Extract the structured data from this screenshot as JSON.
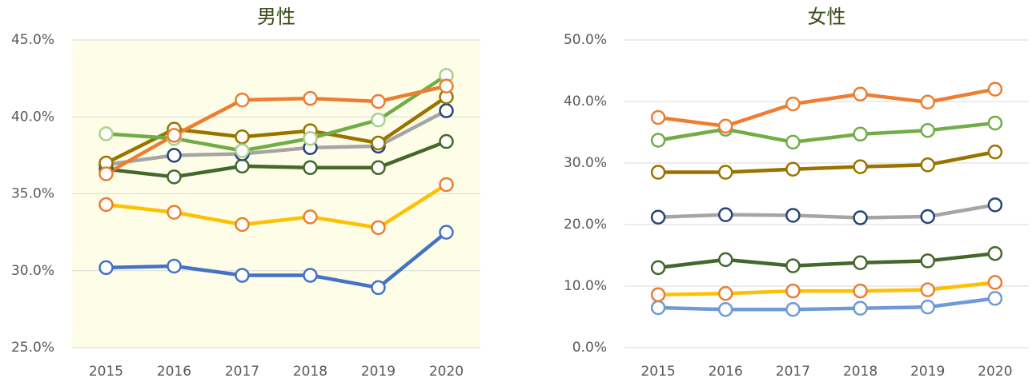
{
  "chart_data": [
    {
      "type": "line",
      "title": "男性",
      "plot_bg": "#fefee8",
      "grid": true,
      "categories": [
        "2015",
        "2016",
        "2017",
        "2018",
        "2019",
        "2020"
      ],
      "ylim": [
        25,
        45
      ],
      "yticks": [
        {
          "value": 25,
          "label": "25.0%"
        },
        {
          "value": 30,
          "label": "30.0%"
        },
        {
          "value": 35,
          "label": "35.0%"
        },
        {
          "value": 40,
          "label": "40.0%"
        },
        {
          "value": 45,
          "label": "45.0%"
        }
      ],
      "series": [
        {
          "color": "#4472c4",
          "marker_color": "#4472c4",
          "values": [
            30.2,
            30.3,
            29.7,
            29.7,
            28.9,
            32.5
          ]
        },
        {
          "color": "#ffc000",
          "marker_color": "#ed7d31",
          "values": [
            34.3,
            33.8,
            33.0,
            33.5,
            32.8,
            35.6
          ]
        },
        {
          "color": "#43682b",
          "marker_color": "#43682b",
          "values": [
            36.6,
            36.1,
            36.8,
            36.7,
            36.7,
            38.4
          ]
        },
        {
          "color": "#a5a5a5",
          "marker_color": "#264478",
          "values": [
            36.9,
            37.5,
            37.6,
            38.0,
            38.1,
            40.4
          ]
        },
        {
          "color": "#997300",
          "marker_color": "#997300",
          "values": [
            37.0,
            39.2,
            38.7,
            39.1,
            38.3,
            41.3
          ]
        },
        {
          "color": "#70ad47",
          "marker_color": "#a9d18e",
          "values": [
            38.9,
            38.6,
            37.8,
            38.6,
            39.8,
            42.7
          ]
        },
        {
          "color": "#ed7d31",
          "marker_color": "#ed7d31",
          "values": [
            36.3,
            38.8,
            41.1,
            41.2,
            41.0,
            42.0
          ]
        }
      ]
    },
    {
      "type": "line",
      "title": "女性",
      "plot_bg": "#ffffff",
      "grid": true,
      "categories": [
        "2015",
        "2016",
        "2017",
        "2018",
        "2019",
        "2020"
      ],
      "ylim": [
        0,
        50
      ],
      "yticks": [
        {
          "value": 0,
          "label": "0.0%"
        },
        {
          "value": 10,
          "label": "10.0%"
        },
        {
          "value": 20,
          "label": "20.0%"
        },
        {
          "value": 30,
          "label": "30.0%"
        },
        {
          "value": 40,
          "label": "40.0%"
        },
        {
          "value": 50,
          "label": "50.0%"
        }
      ],
      "series": [
        {
          "color": "#6f9ad7",
          "marker_color": "#6f9ad7",
          "values": [
            6.5,
            6.2,
            6.2,
            6.4,
            6.6,
            8.0
          ]
        },
        {
          "color": "#ffc000",
          "marker_color": "#ed7d31",
          "values": [
            8.6,
            8.8,
            9.2,
            9.2,
            9.4,
            10.6
          ]
        },
        {
          "color": "#43682b",
          "marker_color": "#43682b",
          "values": [
            13.0,
            14.3,
            13.3,
            13.8,
            14.1,
            15.3
          ]
        },
        {
          "color": "#a5a5a5",
          "marker_color": "#264478",
          "values": [
            21.2,
            21.6,
            21.5,
            21.1,
            21.3,
            23.2
          ]
        },
        {
          "color": "#997300",
          "marker_color": "#997300",
          "values": [
            28.5,
            28.5,
            29.0,
            29.4,
            29.7,
            31.8
          ]
        },
        {
          "color": "#70ad47",
          "marker_color": "#70ad47",
          "values": [
            33.7,
            35.5,
            33.4,
            34.7,
            35.3,
            36.5
          ]
        },
        {
          "color": "#ed7d31",
          "marker_color": "#ed7d31",
          "values": [
            37.4,
            36.0,
            39.6,
            41.2,
            39.9,
            42.0
          ]
        }
      ]
    }
  ]
}
